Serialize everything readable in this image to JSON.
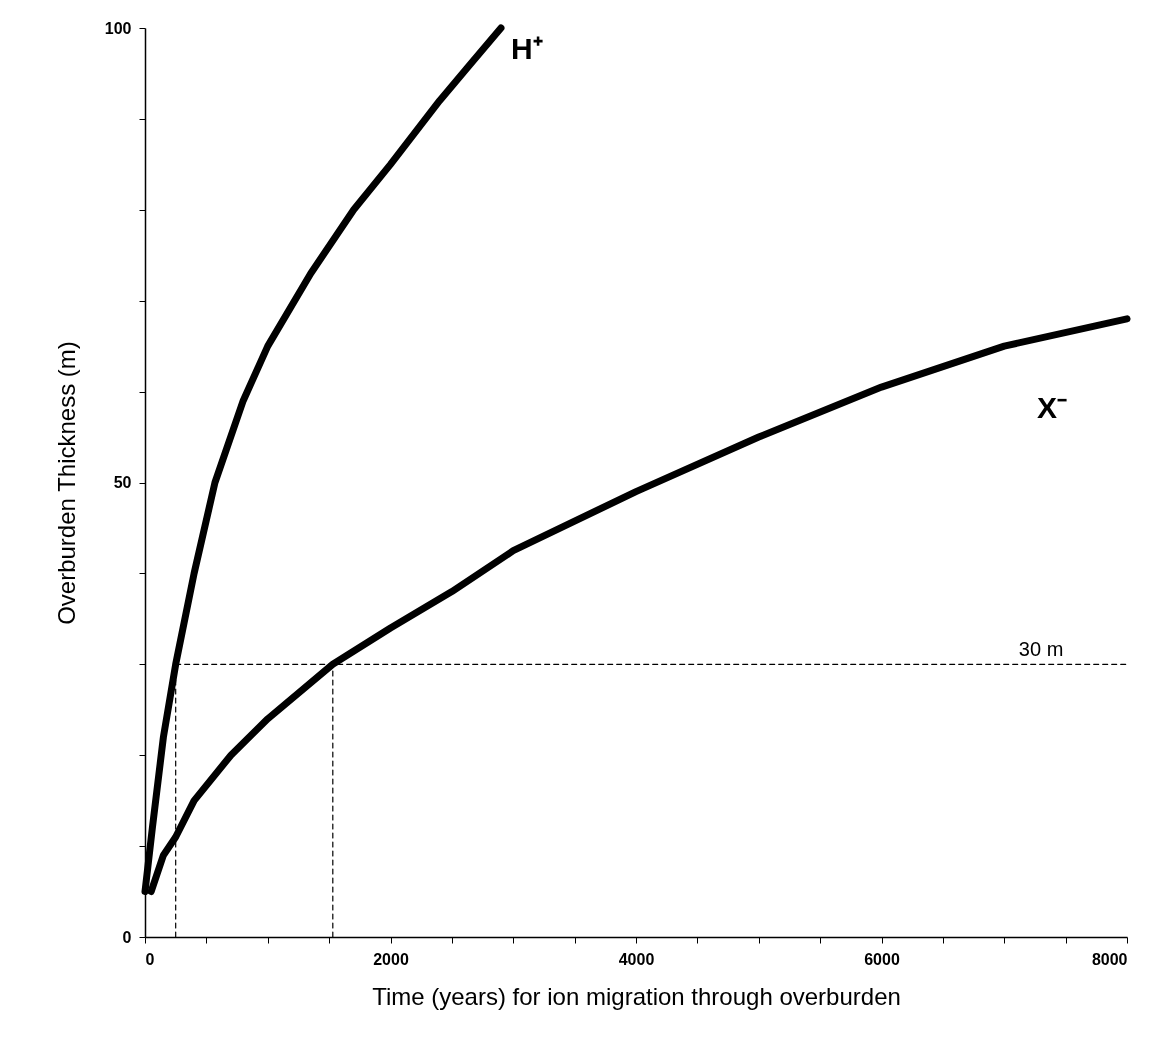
{
  "chart_data": {
    "type": "line",
    "xlabel": "Time (years) for ion migration through overburden",
    "ylabel": "Overburden Thickness (m)",
    "xlim": [
      0,
      8000
    ],
    "ylim": [
      0,
      100
    ],
    "xticks": [
      0,
      {
        "value": 500,
        "label": null
      },
      {
        "value": 1000,
        "label": null
      },
      {
        "value": 1500,
        "label": null
      },
      2000,
      {
        "value": 2500,
        "label": null
      },
      {
        "value": 3000,
        "label": null
      },
      {
        "value": 3500,
        "label": null
      },
      4000,
      {
        "value": 4500,
        "label": null
      },
      {
        "value": 5000,
        "label": null
      },
      {
        "value": 5500,
        "label": null
      },
      6000,
      {
        "value": 6500,
        "label": null
      },
      {
        "value": 7000,
        "label": null
      },
      {
        "value": 7500,
        "label": null
      },
      8000
    ],
    "yticks": [
      0,
      {
        "value": 10,
        "label": null
      },
      {
        "value": 20,
        "label": null
      },
      {
        "value": 30,
        "label": null
      },
      {
        "value": 40,
        "label": null
      },
      50,
      {
        "value": 60,
        "label": null
      },
      {
        "value": 70,
        "label": null
      },
      {
        "value": 80,
        "label": null
      },
      {
        "value": 90,
        "label": null
      },
      100
    ],
    "marker": "none",
    "series": [
      {
        "name": "H⁺",
        "color": "#000000",
        "line_style": "solid",
        "x": [
          0,
          60,
          150,
          250,
          400,
          570,
          800,
          1000,
          1350,
          1700,
          2000,
          2400,
          2650,
          2900
        ],
        "values": [
          5,
          12,
          22,
          30,
          40,
          50,
          59,
          65,
          73,
          80,
          85,
          92,
          96,
          100
        ]
      },
      {
        "name": "X⁻",
        "color": "#000000",
        "line_style": "solid",
        "x": [
          50,
          150,
          250,
          400,
          700,
          1000,
          1530,
          2000,
          2500,
          3000,
          4000,
          5000,
          6000,
          7000,
          8000
        ],
        "values": [
          5,
          9,
          11,
          15,
          20,
          24,
          30,
          34,
          38,
          42.5,
          49,
          55,
          60.5,
          65,
          68
        ]
      },
      {
        "color": "#000000",
        "line_style": "dashed",
        "x": [
          250,
          8000
        ],
        "values": [
          30,
          30
        ]
      },
      {
        "color": "#000000",
        "line_style": "dashed",
        "x": [
          250,
          250
        ],
        "values": [
          0,
          30
        ]
      },
      {
        "color": "#000000",
        "line_style": "dashed",
        "x": [
          1530,
          1530
        ],
        "values": [
          0,
          30
        ]
      }
    ],
    "annotations": [
      {
        "text": "30 m",
        "x": 7300,
        "y": 30
      }
    ]
  }
}
